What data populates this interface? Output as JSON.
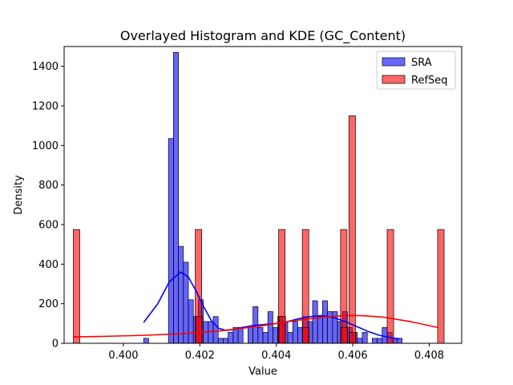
{
  "chart_data": {
    "type": "bar",
    "title": "Overlayed Histogram and KDE (GC_Content)",
    "xlabel": "Value",
    "ylabel": "Density",
    "xlim": [
      0.39845,
      0.40885
    ],
    "ylim": [
      0,
      1500
    ],
    "x_ticks": [
      0.4,
      0.402,
      0.404,
      0.406,
      0.408
    ],
    "x_tick_labels": [
      "0.400",
      "0.402",
      "0.404",
      "0.406",
      "0.408"
    ],
    "y_ticks": [
      0,
      200,
      400,
      600,
      800,
      1000,
      1200,
      1400
    ],
    "y_tick_labels": [
      "0",
      "200",
      "400",
      "600",
      "800",
      "1000",
      "1200",
      "1400"
    ],
    "legend_position": "top-right",
    "series": [
      {
        "name": "SRA",
        "color": "#0000ff",
        "bin_width": 0.00013,
        "bins": [
          [
            0.40053,
            25
          ],
          [
            0.40118,
            1035
          ],
          [
            0.40131,
            1470
          ],
          [
            0.40144,
            490
          ],
          [
            0.40157,
            410
          ],
          [
            0.4017,
            220
          ],
          [
            0.40183,
            135
          ],
          [
            0.40196,
            220
          ],
          [
            0.40209,
            110
          ],
          [
            0.40222,
            110
          ],
          [
            0.40235,
            135
          ],
          [
            0.40248,
            25
          ],
          [
            0.40261,
            25
          ],
          [
            0.40274,
            55
          ],
          [
            0.40287,
            80
          ],
          [
            0.403,
            80
          ],
          [
            0.40326,
            80
          ],
          [
            0.40339,
            185
          ],
          [
            0.40352,
            80
          ],
          [
            0.40365,
            55
          ],
          [
            0.40378,
            160
          ],
          [
            0.40391,
            80
          ],
          [
            0.40404,
            135
          ],
          [
            0.40417,
            110
          ],
          [
            0.4043,
            55
          ],
          [
            0.40443,
            110
          ],
          [
            0.40456,
            80
          ],
          [
            0.40469,
            135
          ],
          [
            0.40482,
            110
          ],
          [
            0.40495,
            215
          ],
          [
            0.40508,
            135
          ],
          [
            0.40521,
            215
          ],
          [
            0.40534,
            160
          ],
          [
            0.40547,
            160
          ],
          [
            0.4056,
            110
          ],
          [
            0.40573,
            160
          ],
          [
            0.40586,
            80
          ],
          [
            0.40599,
            55
          ],
          [
            0.40612,
            25
          ],
          [
            0.40625,
            55
          ],
          [
            0.40651,
            25
          ],
          [
            0.40664,
            25
          ],
          [
            0.40677,
            80
          ],
          [
            0.4069,
            55
          ],
          [
            0.40703,
            25
          ],
          [
            0.40716,
            25
          ]
        ],
        "kde": [
          [
            0.40053,
            105
          ],
          [
            0.4009,
            200
          ],
          [
            0.4012,
            310
          ],
          [
            0.4015,
            360
          ],
          [
            0.4017,
            335
          ],
          [
            0.4019,
            265
          ],
          [
            0.4021,
            185
          ],
          [
            0.4023,
            115
          ],
          [
            0.4025,
            75
          ],
          [
            0.4027,
            65
          ],
          [
            0.4029,
            70
          ],
          [
            0.4031,
            80
          ],
          [
            0.4034,
            90
          ],
          [
            0.4037,
            95
          ],
          [
            0.404,
            100
          ],
          [
            0.4043,
            110
          ],
          [
            0.4046,
            125
          ],
          [
            0.4049,
            135
          ],
          [
            0.4052,
            140
          ],
          [
            0.4055,
            130
          ],
          [
            0.4058,
            110
          ],
          [
            0.4061,
            85
          ],
          [
            0.4064,
            60
          ],
          [
            0.4067,
            40
          ],
          [
            0.407,
            28
          ],
          [
            0.40723,
            22
          ]
        ]
      },
      {
        "name": "RefSeq",
        "color": "#ff0000",
        "bin_width": 0.00017,
        "bins": [
          [
            0.39869,
            575
          ],
          [
            0.40188,
            575
          ],
          [
            0.40189,
            135
          ],
          [
            0.40406,
            575
          ],
          [
            0.40407,
            135
          ],
          [
            0.40468,
            575
          ],
          [
            0.40469,
            80
          ],
          [
            0.40568,
            575
          ],
          [
            0.40569,
            80
          ],
          [
            0.4059,
            1150
          ],
          [
            0.40591,
            55
          ],
          [
            0.4069,
            575
          ],
          [
            0.40822,
            575
          ]
        ],
        "kde": [
          [
            0.39869,
            32
          ],
          [
            0.3995,
            35
          ],
          [
            0.4005,
            40
          ],
          [
            0.4015,
            48
          ],
          [
            0.4025,
            62
          ],
          [
            0.4035,
            85
          ],
          [
            0.4045,
            115
          ],
          [
            0.4052,
            132
          ],
          [
            0.4058,
            140
          ],
          [
            0.4062,
            140
          ],
          [
            0.4068,
            132
          ],
          [
            0.4075,
            110
          ],
          [
            0.40822,
            80
          ]
        ]
      }
    ]
  }
}
